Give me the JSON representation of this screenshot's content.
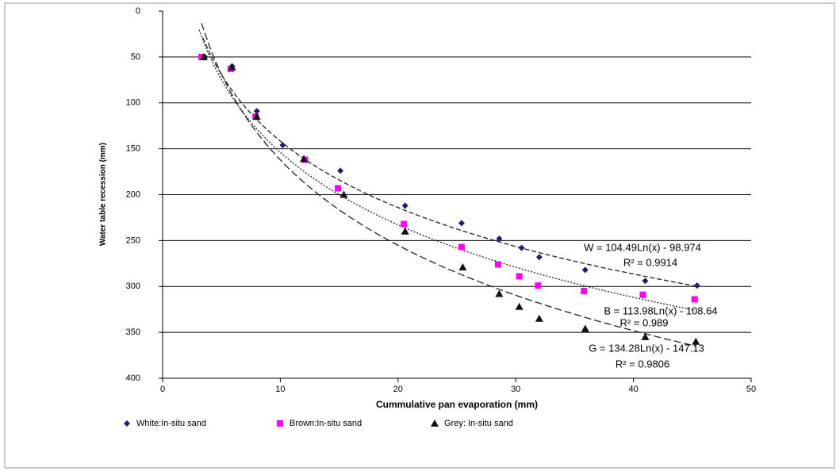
{
  "chart_data": {
    "type": "scatter",
    "x_label": "Cummulative pan evaporation (mm)",
    "y_label": "Water table recession (mm)",
    "xlim": [
      0,
      50
    ],
    "xticks": [
      0,
      10,
      20,
      30,
      40,
      50
    ],
    "ylim": [
      0,
      400
    ],
    "yticks": [
      0,
      50,
      100,
      150,
      200,
      250,
      300,
      350,
      400
    ],
    "y_reversed": true,
    "grid": true,
    "legend": "bottom",
    "series": [
      {
        "name": "White:In-situ sand",
        "color": "#1f1f6e",
        "marker": "diamond",
        "x": [
          3.6,
          5.9,
          8.0,
          10.2,
          15.1,
          20.6,
          25.4,
          28.6,
          30.5,
          32.0,
          35.9,
          41.0,
          45.4
        ],
        "values": [
          50,
          60,
          109,
          146,
          174,
          212,
          231,
          248,
          258,
          268,
          282,
          294,
          299
        ],
        "trendline": {
          "a": 104.49,
          "b": -98.974,
          "equation": "W = 104.49Ln(x) - 98.974",
          "r2": 0.9914,
          "r2_label": "R² = 0.9914"
        }
      },
      {
        "name": "Brown:In-situ sand",
        "color": "#ff00ff",
        "marker": "square",
        "x": [
          3.3,
          5.8,
          7.9,
          12.1,
          14.9,
          20.5,
          25.4,
          28.5,
          30.3,
          31.9,
          35.8,
          40.8,
          45.2
        ],
        "values": [
          50,
          63,
          115,
          162,
          193,
          232,
          257,
          276,
          289,
          299,
          305,
          309,
          314
        ],
        "trendline": {
          "a": 113.98,
          "b": -108.64,
          "equation": "B = 113.98Ln(x) - 108.64",
          "r2": 0.989,
          "r2_label": "R² = 0.989"
        }
      },
      {
        "name": "Grey: In-situ sand",
        "color": "#111111",
        "marker": "triangle",
        "x": [
          3.5,
          5.9,
          8.0,
          12.0,
          15.4,
          20.6,
          25.5,
          28.6,
          30.3,
          32.0,
          35.9,
          41.0,
          45.3
        ],
        "values": [
          50,
          61,
          115,
          161,
          200,
          240,
          279,
          308,
          322,
          335,
          346,
          355,
          360
        ],
        "trendline": {
          "a": 134.28,
          "b": -147.13,
          "equation": "G = 134.28Ln(x) - 147.13",
          "r2": 0.9806,
          "r2_label": "R² = 0.9806"
        }
      }
    ]
  }
}
